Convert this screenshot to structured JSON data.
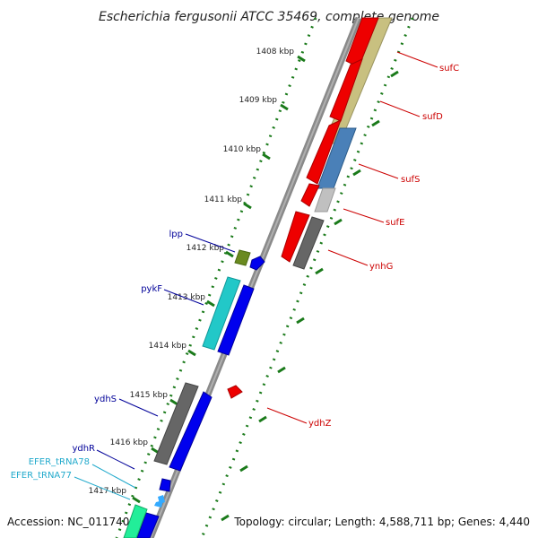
{
  "title": "Escherichia fergusonii ATCC 35469, complete genome",
  "footer": {
    "accession": "Accession: NC_011740",
    "topology": "Topology: circular; Length: 4,588,711 bp; Genes: 4,440"
  },
  "ruler_ticks": [
    "1408 kbp",
    "1409 kbp",
    "1410 kbp",
    "1411 kbp",
    "1412 kbp",
    "1413 kbp",
    "1414 kbp",
    "1415 kbp",
    "1416 kbp",
    "1417 kbp"
  ],
  "gene_labels": {
    "right": [
      "sufC",
      "sufD",
      "sufS",
      "sufE",
      "ynhG",
      "ydhZ"
    ],
    "left": [
      "lpp",
      "pykF",
      "ydhS",
      "ydhR"
    ],
    "trna": [
      "EFER_tRNA78",
      "EFER_tRNA77"
    ]
  },
  "colors": {
    "red_gene": "#ee0000",
    "blue_gene": "#0000ee",
    "khaki_gene": "#c8c080",
    "steel_gene": "#4a80b8",
    "grey_gene": "#666666",
    "cyan_gene": "#22c8c8",
    "olive_gene": "#6a8a20",
    "tick_green": "#1a7a1a",
    "right_label": "#cc0000",
    "left_label": "#000099",
    "trna_label": "#22aacc"
  }
}
